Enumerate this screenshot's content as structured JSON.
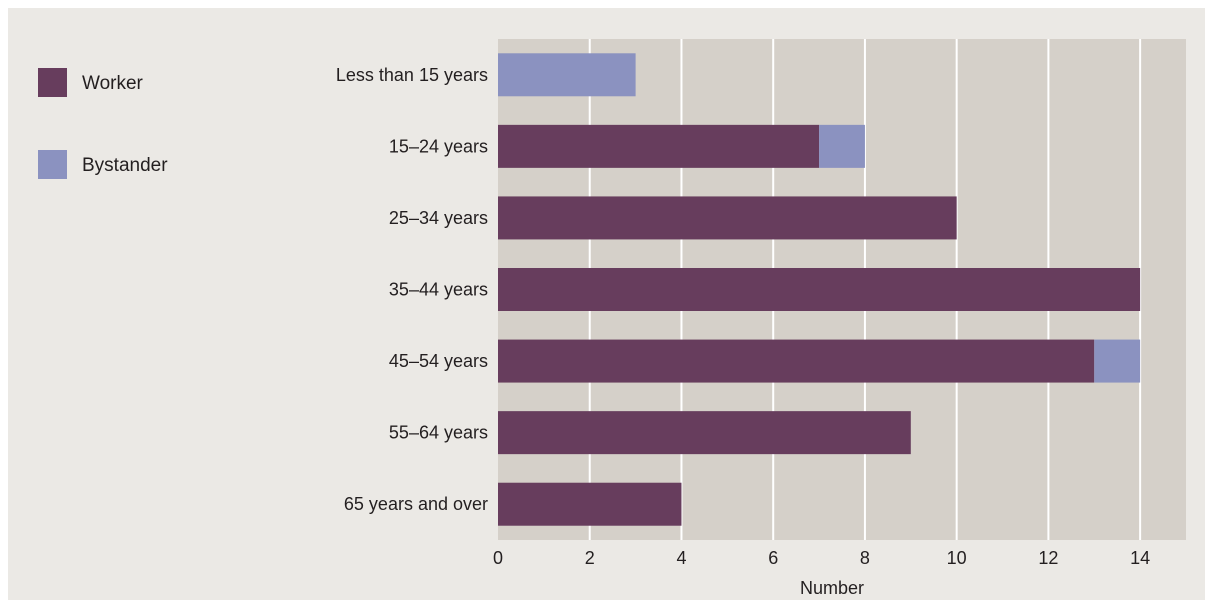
{
  "chart_data": {
    "type": "bar",
    "orientation": "horizontal",
    "stacked": true,
    "categories": [
      "Less than 15 years",
      "15–24 years",
      "25–34 years",
      "35–44 years",
      "45–54 years",
      "55–64 years",
      "65 years and over"
    ],
    "series": [
      {
        "name": "Worker",
        "color": "#673d5d",
        "values": [
          0,
          7,
          10,
          14,
          13,
          9,
          4
        ]
      },
      {
        "name": "Bystander",
        "color": "#8b92c0",
        "values": [
          3,
          1,
          0,
          0,
          1,
          0,
          0
        ]
      }
    ],
    "xlabel": "Number",
    "xlim": [
      0,
      15
    ],
    "xticks": [
      0,
      2,
      4,
      6,
      8,
      10,
      12,
      14
    ],
    "grid": true,
    "legend_position": "top-left",
    "colors": {
      "plot_background": "#d5d0c9",
      "frame_background": "#ebe9e5",
      "gridline": "#ffffff"
    }
  }
}
